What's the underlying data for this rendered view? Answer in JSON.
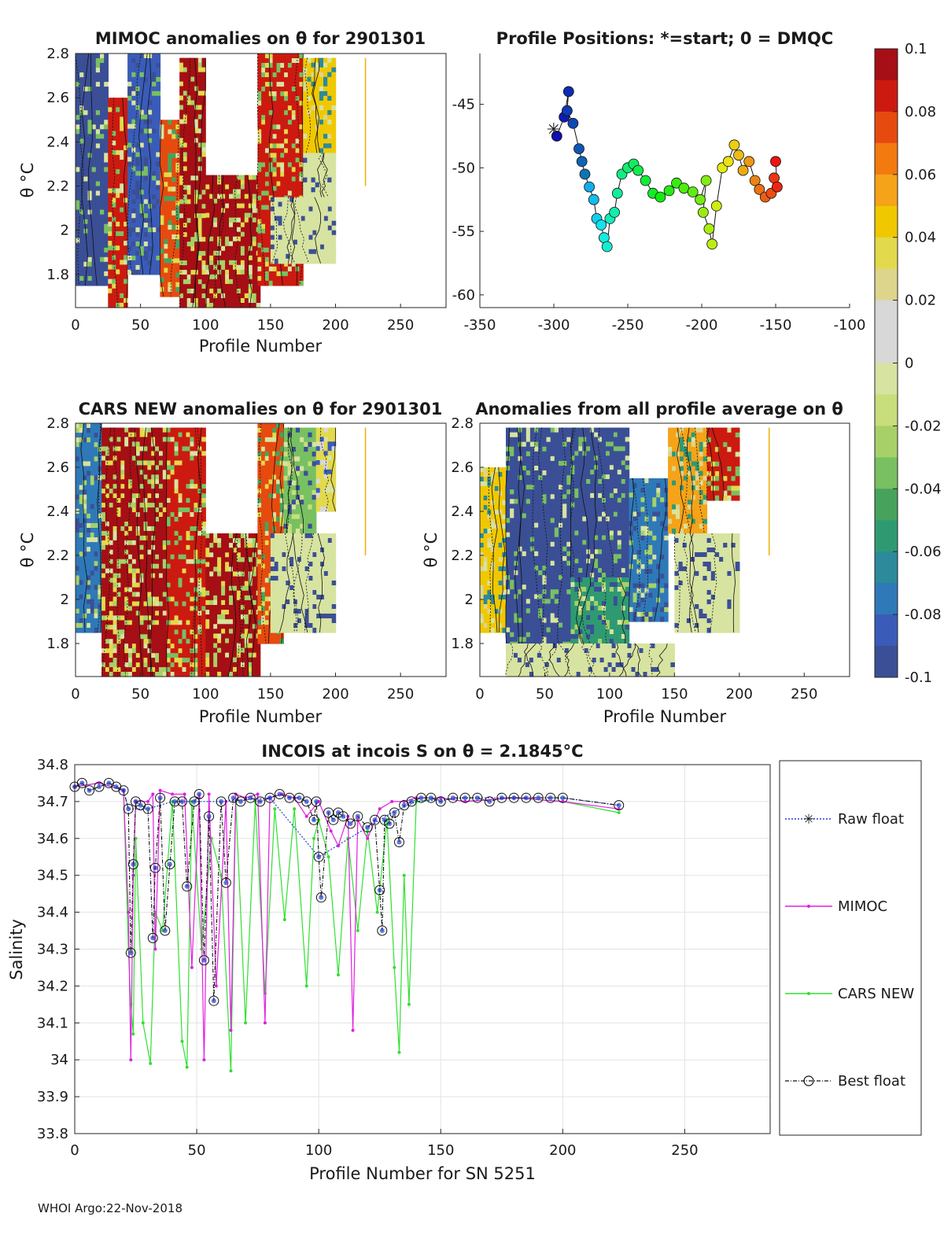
{
  "footer": "WHOI Argo:22-Nov-2018",
  "colorbar": {
    "ticks": [
      "0.1",
      "0.08",
      "0.06",
      "0.04",
      "0.02",
      "0",
      "-0.02",
      "-0.04",
      "-0.06",
      "-0.08",
      "-0.1"
    ],
    "colors": [
      "#a50f15",
      "#cc1a10",
      "#e64a0f",
      "#f27a0f",
      "#f5a318",
      "#f0c800",
      "#e3d94c",
      "#ddd58c",
      "#d8d8d8",
      "#d8d8d8",
      "#d7e3a0",
      "#c8dd7c",
      "#a7d168",
      "#78c062",
      "#47a35c",
      "#2f9a72",
      "#2c8a9a",
      "#2f79b8",
      "#3a5cb8",
      "#3b4f96"
    ]
  },
  "chart_data": [
    {
      "id": "mimoc",
      "type": "heatmap",
      "title": "MIMOC anomalies on θ  for 2901301",
      "xlabel": "Profile Number",
      "ylabel": "θ °C",
      "xlim": [
        0,
        285
      ],
      "ylim": [
        1.65,
        2.8
      ],
      "xticks": [
        "0",
        "50",
        "100",
        "150",
        "200",
        "250"
      ],
      "yticks": [
        "1.8",
        "2",
        "2.2",
        "2.4",
        "2.6",
        "2.8"
      ],
      "blocks": [
        {
          "x": [
            0,
            25
          ],
          "y": [
            1.75,
            2.8
          ],
          "v": -0.09
        },
        {
          "x": [
            25,
            40
          ],
          "y": [
            1.65,
            2.6
          ],
          "v": 0.09
        },
        {
          "x": [
            40,
            65
          ],
          "y": [
            1.8,
            2.8
          ],
          "v": -0.08
        },
        {
          "x": [
            65,
            80
          ],
          "y": [
            1.7,
            2.5
          ],
          "v": 0.08
        },
        {
          "x": [
            80,
            100
          ],
          "y": [
            1.65,
            2.78
          ],
          "v": 0.1
        },
        {
          "x": [
            100,
            142
          ],
          "y": [
            1.65,
            2.25
          ],
          "v": 0.1
        },
        {
          "x": [
            140,
            175
          ],
          "y": [
            1.75,
            2.8
          ],
          "v": 0.09
        },
        {
          "x": [
            175,
            200
          ],
          "y": [
            2.35,
            2.78
          ],
          "v": 0.05
        },
        {
          "x": [
            175,
            200
          ],
          "y": [
            2.15,
            2.35
          ],
          "v": -0.01
        },
        {
          "x": [
            150,
            200
          ],
          "y": [
            1.85,
            2.15
          ],
          "v": 0.0
        }
      ]
    },
    {
      "id": "positions",
      "type": "scatter",
      "title": "Profile Positions: *=start; 0 = DMQC",
      "xlim": [
        -350,
        -100
      ],
      "ylim": [
        -61,
        -41
      ],
      "xticks": [
        "-350",
        "-300",
        "-250",
        "-200",
        "-150",
        "-100"
      ],
      "yticks": [
        "-45",
        "-50",
        "-55",
        "-60"
      ],
      "start": [
        -300,
        -47
      ],
      "points": [
        [
          -298,
          -47.5
        ],
        [
          -293,
          -46
        ],
        [
          -290,
          -44
        ],
        [
          -291,
          -45.5
        ],
        [
          -287,
          -46.5
        ],
        [
          -283,
          -48.5
        ],
        [
          -281,
          -49.5
        ],
        [
          -279,
          -50.5
        ],
        [
          -276,
          -51.5
        ],
        [
          -273,
          -52.5
        ],
        [
          -271,
          -54
        ],
        [
          -268,
          -54.5
        ],
        [
          -266,
          -55.5
        ],
        [
          -264,
          -56.2
        ],
        [
          -262,
          -54
        ],
        [
          -259,
          -53.5
        ],
        [
          -257,
          -52
        ],
        [
          -254,
          -50.5
        ],
        [
          -250,
          -50
        ],
        [
          -246,
          -49.7
        ],
        [
          -243,
          -50.2
        ],
        [
          -238,
          -51
        ],
        [
          -233,
          -52
        ],
        [
          -228,
          -52.3
        ],
        [
          -222,
          -51.8
        ],
        [
          -217,
          -51.2
        ],
        [
          -212,
          -51.6
        ],
        [
          -206,
          -51.9
        ],
        [
          -201,
          -52.5
        ],
        [
          -197,
          -51
        ],
        [
          -199,
          -53.5
        ],
        [
          -195,
          -54.8
        ],
        [
          -193,
          -56
        ],
        [
          -190,
          -53
        ],
        [
          -186,
          -50
        ],
        [
          -182,
          -49.5
        ],
        [
          -178,
          -48.2
        ],
        [
          -175,
          -49
        ],
        [
          -172,
          -50.2
        ],
        [
          -168,
          -49.5
        ],
        [
          -164,
          -51
        ],
        [
          -161,
          -51.7
        ],
        [
          -157,
          -52.3
        ],
        [
          -153,
          -52
        ],
        [
          -151,
          -50.8
        ],
        [
          -149,
          -51.5
        ],
        [
          -150,
          -49.5
        ]
      ]
    },
    {
      "id": "cars",
      "type": "heatmap",
      "title": "CARS NEW anomalies on θ for 2901301",
      "xlabel": "Profile Number",
      "ylabel": "θ °C",
      "xlim": [
        0,
        285
      ],
      "ylim": [
        1.65,
        2.8
      ],
      "xticks": [
        "0",
        "50",
        "100",
        "150",
        "200",
        "250"
      ],
      "yticks": [
        "1.8",
        "2",
        "2.2",
        "2.4",
        "2.6",
        "2.8"
      ],
      "blocks": [
        {
          "x": [
            0,
            20
          ],
          "y": [
            1.85,
            2.8
          ],
          "v": -0.07
        },
        {
          "x": [
            20,
            70
          ],
          "y": [
            1.65,
            2.78
          ],
          "v": 0.1
        },
        {
          "x": [
            70,
            100
          ],
          "y": [
            1.65,
            2.78
          ],
          "v": 0.09
        },
        {
          "x": [
            100,
            142
          ],
          "y": [
            1.65,
            2.3
          ],
          "v": 0.1
        },
        {
          "x": [
            140,
            160
          ],
          "y": [
            1.8,
            2.8
          ],
          "v": 0.08
        },
        {
          "x": [
            160,
            185
          ],
          "y": [
            2.3,
            2.78
          ],
          "v": -0.03
        },
        {
          "x": [
            185,
            200
          ],
          "y": [
            2.4,
            2.78
          ],
          "v": 0.04
        },
        {
          "x": [
            150,
            200
          ],
          "y": [
            1.85,
            2.3
          ],
          "v": 0.0
        }
      ]
    },
    {
      "id": "allavg",
      "type": "heatmap",
      "title": "Anomalies from all profile average on θ",
      "xlabel": "Profile Number",
      "ylabel": "θ °C",
      "xlim": [
        0,
        285
      ],
      "ylim": [
        1.65,
        2.8
      ],
      "xticks": [
        "0",
        "50",
        "100",
        "150",
        "200",
        "250"
      ],
      "yticks": [
        "1.8",
        "2",
        "2.2",
        "2.4",
        "2.6",
        "2.8"
      ],
      "blocks": [
        {
          "x": [
            0,
            20
          ],
          "y": [
            1.85,
            2.6
          ],
          "v": 0.05
        },
        {
          "x": [
            20,
            70
          ],
          "y": [
            1.7,
            2.78
          ],
          "v": -0.09
        },
        {
          "x": [
            70,
            115
          ],
          "y": [
            2.1,
            2.78
          ],
          "v": -0.09
        },
        {
          "x": [
            70,
            115
          ],
          "y": [
            1.8,
            2.1
          ],
          "v": -0.05
        },
        {
          "x": [
            115,
            145
          ],
          "y": [
            1.9,
            2.55
          ],
          "v": -0.07
        },
        {
          "x": [
            145,
            175
          ],
          "y": [
            2.3,
            2.78
          ],
          "v": 0.06
        },
        {
          "x": [
            175,
            200
          ],
          "y": [
            2.45,
            2.78
          ],
          "v": 0.09
        },
        {
          "x": [
            150,
            200
          ],
          "y": [
            1.85,
            2.3
          ],
          "v": 0.0
        },
        {
          "x": [
            20,
            150
          ],
          "y": [
            1.65,
            1.8
          ],
          "v": 0.0
        }
      ]
    },
    {
      "id": "incois",
      "type": "line",
      "title": "INCOIS at incois S on θ = 2.1845°C",
      "xlabel": "Profile Number for SN 5251",
      "ylabel": "Salinity",
      "xlim": [
        0,
        285
      ],
      "ylim": [
        33.8,
        34.8
      ],
      "xticks": [
        "0",
        "50",
        "100",
        "150",
        "200",
        "250"
      ],
      "yticks": [
        "33.8",
        "33.9",
        "34",
        "34.1",
        "34.2",
        "34.3",
        "34.4",
        "34.5",
        "34.6",
        "34.7",
        "34.8"
      ],
      "legend": [
        "Raw float",
        "MIMOC",
        "CARS NEW",
        "Best float"
      ],
      "series": [
        {
          "name": "Best float",
          "x": [
            0,
            3,
            6,
            10,
            14,
            17,
            20,
            22,
            23,
            24,
            25,
            27,
            30,
            32,
            33,
            35,
            37,
            39,
            41,
            44,
            46,
            49,
            51,
            53,
            55,
            57,
            60,
            62,
            65,
            68,
            72,
            76,
            80,
            84,
            88,
            92,
            95,
            98,
            99,
            100,
            101,
            104,
            106,
            108,
            110,
            113,
            116,
            120,
            123,
            125,
            126,
            127,
            129,
            131,
            133,
            135,
            138,
            142,
            146,
            150,
            155,
            160,
            165,
            170,
            175,
            180,
            185,
            190,
            195,
            200,
            223
          ],
          "y": [
            34.74,
            34.75,
            34.73,
            34.74,
            34.75,
            34.74,
            34.73,
            34.68,
            34.29,
            34.53,
            34.7,
            34.69,
            34.68,
            34.33,
            34.52,
            34.71,
            34.35,
            34.53,
            34.7,
            34.7,
            34.47,
            34.7,
            34.72,
            34.27,
            34.66,
            34.16,
            34.7,
            34.48,
            34.71,
            34.7,
            34.71,
            34.7,
            34.71,
            34.72,
            34.71,
            34.71,
            34.7,
            34.65,
            34.7,
            34.55,
            34.44,
            34.67,
            34.65,
            34.67,
            34.66,
            34.64,
            34.66,
            34.63,
            34.65,
            34.46,
            34.35,
            34.65,
            34.64,
            34.67,
            34.59,
            34.69,
            34.7,
            34.71,
            34.71,
            34.7,
            34.71,
            34.71,
            34.71,
            34.7,
            34.71,
            34.71,
            34.71,
            34.71,
            34.71,
            34.71,
            34.69
          ]
        },
        {
          "name": "MIMOC",
          "x": [
            0,
            10,
            20,
            22,
            23,
            24,
            25,
            30,
            32,
            33,
            35,
            40,
            45,
            48,
            51,
            53,
            55,
            58,
            62,
            64,
            66,
            70,
            75,
            78,
            80,
            85,
            90,
            95,
            100,
            105,
            108,
            112,
            114,
            116,
            120,
            125,
            130,
            135,
            140,
            150,
            160,
            180,
            200,
            223
          ],
          "y": [
            34.74,
            34.75,
            34.73,
            34.4,
            34.0,
            34.5,
            34.7,
            34.7,
            34.72,
            34.3,
            34.73,
            34.72,
            34.72,
            34.25,
            34.71,
            34.0,
            34.72,
            34.2,
            34.7,
            34.08,
            34.72,
            34.71,
            34.72,
            34.1,
            34.71,
            34.72,
            34.71,
            34.66,
            34.7,
            34.62,
            34.58,
            34.66,
            34.08,
            34.65,
            34.6,
            34.68,
            34.7,
            34.7,
            34.71,
            34.71,
            34.7,
            34.71,
            34.7,
            34.68
          ]
        },
        {
          "name": "CARS NEW",
          "x": [
            0,
            10,
            20,
            22,
            23,
            24,
            25,
            28,
            31,
            33,
            36,
            40,
            44,
            46,
            48,
            52,
            56,
            60,
            64,
            66,
            70,
            74,
            78,
            82,
            86,
            90,
            95,
            98,
            100,
            104,
            108,
            112,
            116,
            120,
            124,
            128,
            131,
            133,
            135,
            137,
            140,
            150,
            160,
            180,
            200,
            223
          ],
          "y": [
            34.74,
            34.75,
            34.73,
            34.3,
            34.15,
            34.07,
            34.6,
            34.1,
            33.99,
            34.4,
            34.35,
            34.7,
            34.05,
            33.98,
            34.7,
            34.3,
            34.6,
            34.5,
            33.97,
            34.7,
            34.1,
            34.7,
            34.18,
            34.68,
            34.38,
            34.68,
            34.2,
            34.6,
            34.65,
            34.55,
            34.23,
            34.6,
            34.35,
            34.62,
            34.4,
            34.65,
            34.25,
            34.02,
            34.5,
            34.15,
            34.7,
            34.71,
            34.7,
            34.71,
            34.7,
            34.67
          ]
        },
        {
          "name": "Raw float",
          "x": [
            0,
            3,
            6,
            10,
            14,
            17,
            20,
            22,
            30,
            40,
            60,
            80,
            100,
            120,
            130,
            140,
            160,
            180,
            200,
            223
          ],
          "y": [
            34.74,
            34.75,
            34.73,
            34.74,
            34.75,
            34.74,
            34.73,
            34.68,
            34.68,
            34.7,
            34.7,
            34.71,
            34.55,
            34.63,
            34.67,
            34.7,
            34.71,
            34.71,
            34.71,
            34.69
          ]
        }
      ]
    }
  ]
}
